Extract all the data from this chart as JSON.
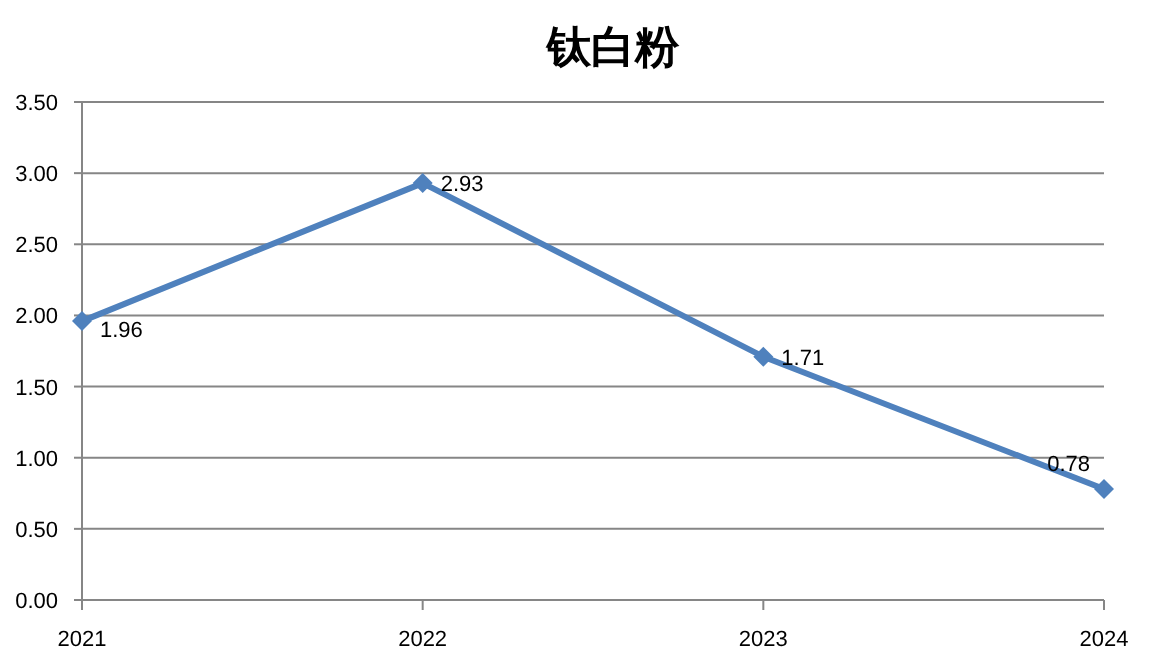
{
  "chart_data": {
    "type": "line",
    "title": "钛白粉",
    "categories": [
      "2021",
      "2022",
      "2023",
      "2024"
    ],
    "series": [
      {
        "color": "#4f81bd",
        "values": [
          1.96,
          2.93,
          1.71,
          0.78
        ]
      }
    ],
    "ylim": [
      0,
      3.5
    ],
    "yticks": [
      {
        "value": 0,
        "label": "0.00"
      },
      {
        "value": 0.5,
        "label": "0.50"
      },
      {
        "value": 1,
        "label": "1.00"
      },
      {
        "value": 1.5,
        "label": "1.50"
      },
      {
        "value": 2,
        "label": "2.00"
      },
      {
        "value": 2.5,
        "label": "2.50"
      },
      {
        "value": 3,
        "label": "3.00"
      },
      {
        "value": 3.5,
        "label": "3.50"
      }
    ],
    "grid": "y",
    "marker": "diamond",
    "line_style": "solid",
    "data_labels": true
  }
}
